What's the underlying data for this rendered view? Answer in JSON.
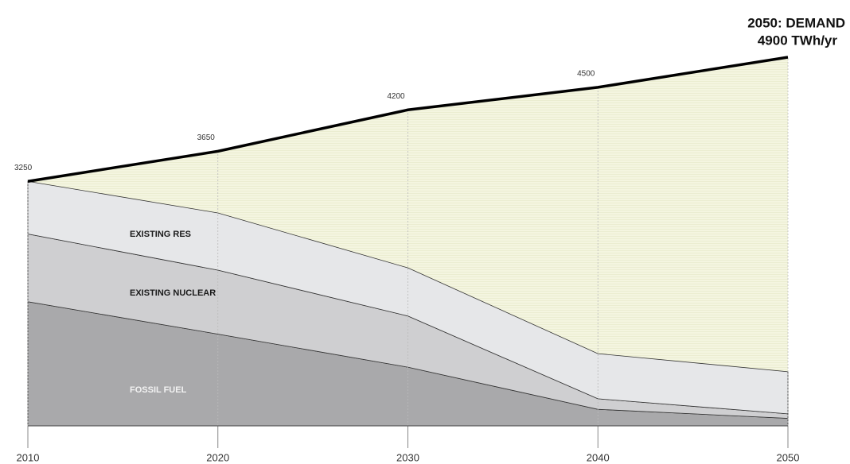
{
  "chart_data": {
    "type": "stacked_area",
    "x": [
      2010,
      2020,
      2030,
      2040,
      2050
    ],
    "xlim": [
      2010,
      2050
    ],
    "xticks": [
      2010,
      2020,
      2030,
      2040,
      2050
    ],
    "ylim": [
      0,
      4900
    ],
    "series": [
      {
        "name": "FOSSIL FUEL",
        "color": "#a9a9ab",
        "label_color": "#f2f2f2",
        "values": [
          1650,
          1220,
          780,
          220,
          100
        ]
      },
      {
        "name": "EXISTING NUCLEAR",
        "color": "#cfcfd1",
        "label_color": "#1a1a1a",
        "values": [
          900,
          850,
          680,
          140,
          60
        ]
      },
      {
        "name": "EXISTING RES",
        "color": "#e6e7e9",
        "label_color": "#1a1a1a",
        "values": [
          700,
          760,
          640,
          600,
          560
        ]
      }
    ],
    "demand": {
      "color": "#000000",
      "fill": "#f3f4dd",
      "values": [
        3250,
        3650,
        4200,
        4500,
        4900
      ]
    },
    "annotations": [
      "2050: DEMAND",
      "4900 TWh/yr"
    ]
  }
}
